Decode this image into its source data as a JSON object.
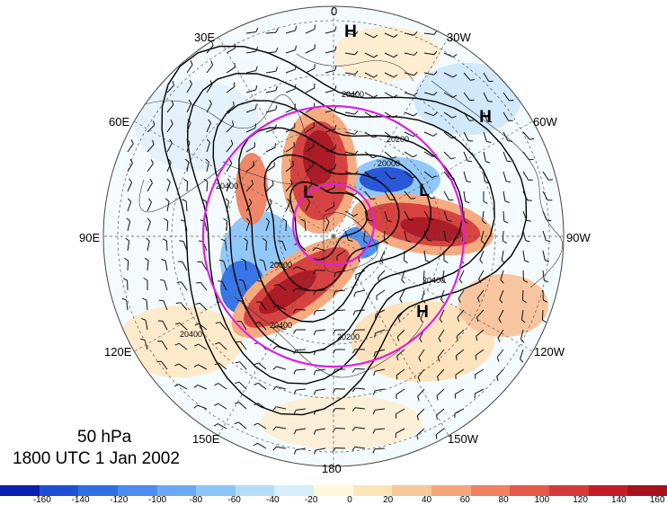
{
  "map": {
    "level": "50 hPa",
    "datetime": "1800 UTC 1 Jan 2002",
    "projection": "north polar stereographic",
    "field_colors": "anomaly / shaded field",
    "longitude_labels": [
      {
        "text": "0",
        "lon": 0
      },
      {
        "text": "30W",
        "lon": -30
      },
      {
        "text": "60W",
        "lon": -60
      },
      {
        "text": "90W",
        "lon": -90
      },
      {
        "text": "120W",
        "lon": -120
      },
      {
        "text": "150W",
        "lon": -150
      },
      {
        "text": "180",
        "lon": 180
      },
      {
        "text": "150E",
        "lon": 150
      },
      {
        "text": "120E",
        "lon": 120
      },
      {
        "text": "90E",
        "lon": 90
      },
      {
        "text": "60E",
        "lon": 60
      },
      {
        "text": "30E",
        "lon": 30
      }
    ],
    "pressure_systems": [
      {
        "type": "H",
        "where": "near 0 longitude"
      },
      {
        "type": "H",
        "where": "near 40W"
      },
      {
        "type": "L",
        "where": "near 60E"
      },
      {
        "type": "L",
        "where": "near 60W"
      },
      {
        "type": "H",
        "where": "near 130W"
      }
    ],
    "contour_labels": [
      "20400",
      "20200",
      "20000",
      "20000",
      "20400",
      "20400",
      "20200",
      "20400",
      "20400"
    ]
  },
  "colorbar": {
    "ticks": [
      "-160",
      "-140",
      "-120",
      "-100",
      "-80",
      "-60",
      "-40",
      "-20",
      "0",
      "20",
      "40",
      "60",
      "80",
      "100",
      "120",
      "140",
      "160"
    ],
    "colors": [
      "#0b1fb3",
      "#1f4fd6",
      "#2f6fe6",
      "#4a8cf0",
      "#6aaaf5",
      "#8cc6f8",
      "#b3ddfb",
      "#d8eefc",
      "#fff8dc",
      "#fde5b8",
      "#f9c89a",
      "#f5a77a",
      "#ef8060",
      "#e65a48",
      "#d63a36",
      "#c41d26",
      "#a8111c"
    ]
  }
}
